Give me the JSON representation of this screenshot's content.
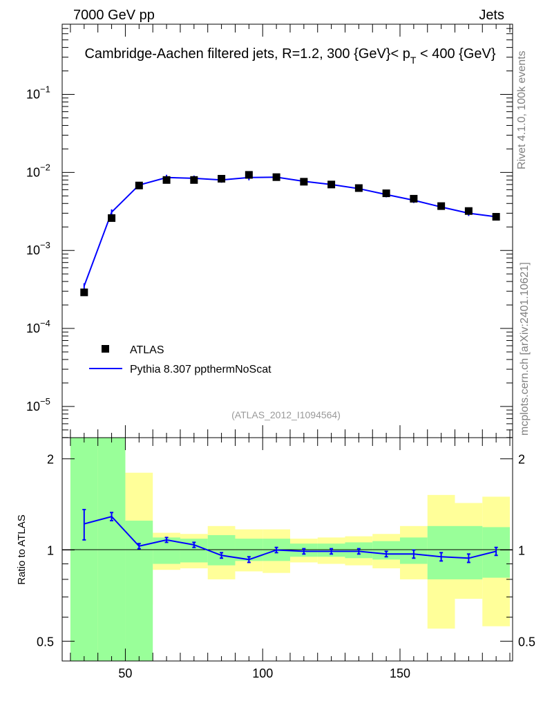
{
  "header": {
    "energy_label": "7000 GeV pp",
    "category_label": "Jets"
  },
  "side_labels": {
    "rivet": "Rivet 4.1.0,  100k events",
    "mcplots": "mcplots.cern.ch [arXiv:2401.10621]"
  },
  "chart_data": [
    {
      "type": "scatter",
      "panel": "main",
      "title": "Cambridge-Aachen filtered jets, R=1.2, 300 {GeV}< p_T < 400 {GeV}",
      "title_main": "Cambridge-Aachen filtered jets, R=1.2, 300 {GeV}< p",
      "title_sub": "T",
      "title_tail": " < 400 {GeV}",
      "analysis_label": "(ATLAS_2012_I1094564)",
      "yscale": "log",
      "xlim": [
        27,
        191
      ],
      "ylim_exp": [
        -5.4,
        -0.1
      ],
      "y_tick_labels": [
        {
          "base": "10",
          "exp": "−1",
          "value": -1
        },
        {
          "base": "10",
          "exp": "−2",
          "value": -2
        },
        {
          "base": "10",
          "exp": "−3",
          "value": -3
        },
        {
          "base": "10",
          "exp": "−4",
          "value": -4
        },
        {
          "base": "10",
          "exp": "−5",
          "value": -5
        }
      ],
      "x": [
        35,
        45,
        55,
        65,
        75,
        85,
        95,
        105,
        115,
        125,
        135,
        145,
        155,
        165,
        175,
        185
      ],
      "series": [
        {
          "name": "ATLAS",
          "kind": "markers",
          "color": "#000000",
          "values": [
            0.00029,
            0.0026,
            0.0068,
            0.008,
            0.008,
            0.0083,
            0.0093,
            0.0087,
            0.0076,
            0.007,
            0.0063,
            0.0054,
            0.0046,
            0.0037,
            0.0032,
            0.0027
          ]
        },
        {
          "name": "Pythia 8.307 ppthermNoScat",
          "kind": "line",
          "color": "#0000ff",
          "values": [
            0.00035,
            0.0031,
            0.0069,
            0.0086,
            0.0084,
            0.008,
            0.0086,
            0.0087,
            0.0077,
            0.007,
            0.0062,
            0.0052,
            0.0044,
            0.0036,
            0.003,
            0.0027
          ]
        }
      ],
      "legend_position": "bottom-left"
    },
    {
      "type": "line",
      "panel": "ratio",
      "ylabel": "Ratio to ATLAS",
      "yscale": "log",
      "ylim": [
        0.43,
        2.35
      ],
      "y_ticks": [
        0.5,
        1,
        2
      ],
      "y_tick_labels": [
        "0.5",
        "1",
        "2"
      ],
      "x_ticks": [
        50,
        100,
        150
      ],
      "x_tick_labels": [
        "50",
        "100",
        "150"
      ],
      "x_bins": [
        [
          30,
          40
        ],
        [
          40,
          50
        ],
        [
          50,
          60
        ],
        [
          60,
          70
        ],
        [
          70,
          80
        ],
        [
          80,
          90
        ],
        [
          90,
          100
        ],
        [
          100,
          110
        ],
        [
          110,
          120
        ],
        [
          120,
          130
        ],
        [
          130,
          140
        ],
        [
          140,
          150
        ],
        [
          150,
          160
        ],
        [
          160,
          170
        ],
        [
          170,
          180
        ],
        [
          180,
          190
        ]
      ],
      "band_inner": [
        [
          0.43,
          2.35
        ],
        [
          0.43,
          2.35
        ],
        [
          0.43,
          1.25
        ],
        [
          0.9,
          1.1
        ],
        [
          0.91,
          1.09
        ],
        [
          0.89,
          1.12
        ],
        [
          0.92,
          1.09
        ],
        [
          0.92,
          1.09
        ],
        [
          0.95,
          1.05
        ],
        [
          0.95,
          1.05
        ],
        [
          0.94,
          1.06
        ],
        [
          0.93,
          1.07
        ],
        [
          0.9,
          1.1
        ],
        [
          0.8,
          1.2
        ],
        [
          0.8,
          1.2
        ],
        [
          0.81,
          1.19
        ]
      ],
      "band_outer": [
        [
          0.43,
          2.35
        ],
        [
          0.43,
          2.2
        ],
        [
          0.66,
          1.8
        ],
        [
          0.86,
          1.14
        ],
        [
          0.87,
          1.13
        ],
        [
          0.8,
          1.2
        ],
        [
          0.85,
          1.17
        ],
        [
          0.84,
          1.17
        ],
        [
          0.91,
          1.09
        ],
        [
          0.9,
          1.1
        ],
        [
          0.89,
          1.11
        ],
        [
          0.87,
          1.13
        ],
        [
          0.8,
          1.2
        ],
        [
          0.55,
          1.52
        ],
        [
          0.69,
          1.43
        ],
        [
          0.56,
          1.5
        ]
      ],
      "ratio_values": [
        1.22,
        1.29,
        1.03,
        1.08,
        1.04,
        0.96,
        0.93,
        1.0,
        0.99,
        0.99,
        0.99,
        0.97,
        0.97,
        0.95,
        0.94,
        0.99
      ],
      "ratio_errors": [
        0.14,
        0.04,
        0.02,
        0.02,
        0.02,
        0.02,
        0.02,
        0.02,
        0.02,
        0.02,
        0.02,
        0.02,
        0.03,
        0.03,
        0.03,
        0.03
      ],
      "colors": {
        "inner_band": "#99ff99",
        "outer_band": "#ffff99",
        "ratio_line": "#0000ff"
      }
    }
  ]
}
